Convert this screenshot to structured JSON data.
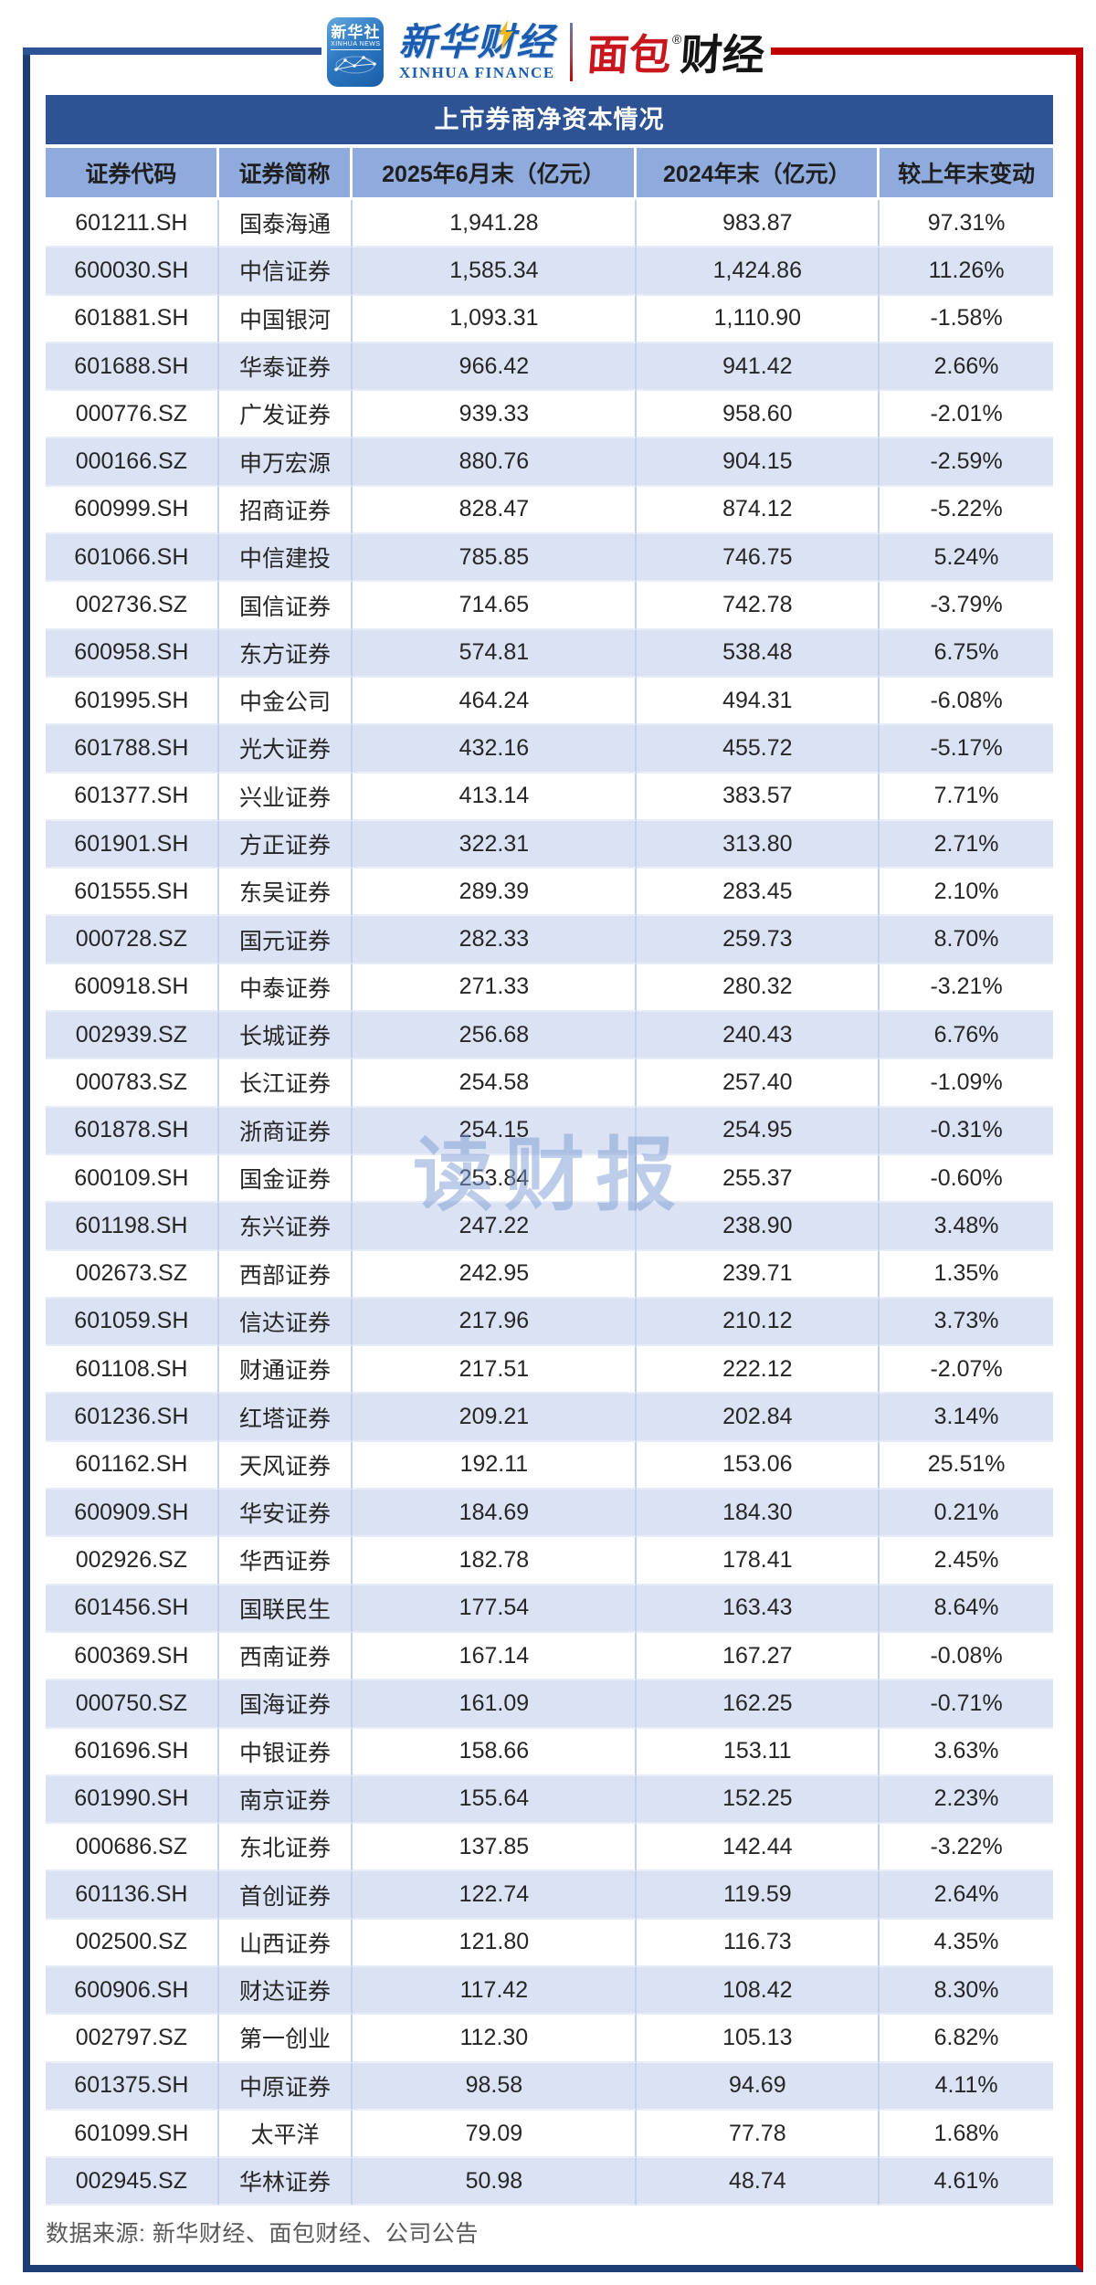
{
  "header_logo": {
    "xinhua_icon": {
      "line1": "新华社",
      "line2": "XINHUA NEWS"
    },
    "xinhua_finance": {
      "cn": "新华财经",
      "en": "XINHUA FINANCE"
    },
    "bread_finance": {
      "cn_red": "面包",
      "reg_mark": "®",
      "cn_black": "财经"
    }
  },
  "chart_data": {
    "type": "table",
    "title": "上市券商净资本情况",
    "columns": [
      "证券代码",
      "证券简称",
      "2025年6月末（亿元）",
      "2024年末（亿元）",
      "较上年末变动"
    ],
    "rows": [
      [
        "601211.SH",
        "国泰海通",
        "1,941.28",
        "983.87",
        "97.31%"
      ],
      [
        "600030.SH",
        "中信证券",
        "1,585.34",
        "1,424.86",
        "11.26%"
      ],
      [
        "601881.SH",
        "中国银河",
        "1,093.31",
        "1,110.90",
        "-1.58%"
      ],
      [
        "601688.SH",
        "华泰证券",
        "966.42",
        "941.42",
        "2.66%"
      ],
      [
        "000776.SZ",
        "广发证券",
        "939.33",
        "958.60",
        "-2.01%"
      ],
      [
        "000166.SZ",
        "申万宏源",
        "880.76",
        "904.15",
        "-2.59%"
      ],
      [
        "600999.SH",
        "招商证券",
        "828.47",
        "874.12",
        "-5.22%"
      ],
      [
        "601066.SH",
        "中信建投",
        "785.85",
        "746.75",
        "5.24%"
      ],
      [
        "002736.SZ",
        "国信证券",
        "714.65",
        "742.78",
        "-3.79%"
      ],
      [
        "600958.SH",
        "东方证券",
        "574.81",
        "538.48",
        "6.75%"
      ],
      [
        "601995.SH",
        "中金公司",
        "464.24",
        "494.31",
        "-6.08%"
      ],
      [
        "601788.SH",
        "光大证券",
        "432.16",
        "455.72",
        "-5.17%"
      ],
      [
        "601377.SH",
        "兴业证券",
        "413.14",
        "383.57",
        "7.71%"
      ],
      [
        "601901.SH",
        "方正证券",
        "322.31",
        "313.80",
        "2.71%"
      ],
      [
        "601555.SH",
        "东吴证券",
        "289.39",
        "283.45",
        "2.10%"
      ],
      [
        "000728.SZ",
        "国元证券",
        "282.33",
        "259.73",
        "8.70%"
      ],
      [
        "600918.SH",
        "中泰证券",
        "271.33",
        "280.32",
        "-3.21%"
      ],
      [
        "002939.SZ",
        "长城证券",
        "256.68",
        "240.43",
        "6.76%"
      ],
      [
        "000783.SZ",
        "长江证券",
        "254.58",
        "257.40",
        "-1.09%"
      ],
      [
        "601878.SH",
        "浙商证券",
        "254.15",
        "254.95",
        "-0.31%"
      ],
      [
        "600109.SH",
        "国金证券",
        "253.84",
        "255.37",
        "-0.60%"
      ],
      [
        "601198.SH",
        "东兴证券",
        "247.22",
        "238.90",
        "3.48%"
      ],
      [
        "002673.SZ",
        "西部证券",
        "242.95",
        "239.71",
        "1.35%"
      ],
      [
        "601059.SH",
        "信达证券",
        "217.96",
        "210.12",
        "3.73%"
      ],
      [
        "601108.SH",
        "财通证券",
        "217.51",
        "222.12",
        "-2.07%"
      ],
      [
        "601236.SH",
        "红塔证券",
        "209.21",
        "202.84",
        "3.14%"
      ],
      [
        "601162.SH",
        "天风证券",
        "192.11",
        "153.06",
        "25.51%"
      ],
      [
        "600909.SH",
        "华安证券",
        "184.69",
        "184.30",
        "0.21%"
      ],
      [
        "002926.SZ",
        "华西证券",
        "182.78",
        "178.41",
        "2.45%"
      ],
      [
        "601456.SH",
        "国联民生",
        "177.54",
        "163.43",
        "8.64%"
      ],
      [
        "600369.SH",
        "西南证券",
        "167.14",
        "167.27",
        "-0.08%"
      ],
      [
        "000750.SZ",
        "国海证券",
        "161.09",
        "162.25",
        "-0.71%"
      ],
      [
        "601696.SH",
        "中银证券",
        "158.66",
        "153.11",
        "3.63%"
      ],
      [
        "601990.SH",
        "南京证券",
        "155.64",
        "152.25",
        "2.23%"
      ],
      [
        "000686.SZ",
        "东北证券",
        "137.85",
        "142.44",
        "-3.22%"
      ],
      [
        "601136.SH",
        "首创证券",
        "122.74",
        "119.59",
        "2.64%"
      ],
      [
        "002500.SZ",
        "山西证券",
        "121.80",
        "116.73",
        "4.35%"
      ],
      [
        "600906.SH",
        "财达证券",
        "117.42",
        "108.42",
        "8.30%"
      ],
      [
        "002797.SZ",
        "第一创业",
        "112.30",
        "105.13",
        "6.82%"
      ],
      [
        "601375.SH",
        "中原证券",
        "98.58",
        "94.69",
        "4.11%"
      ],
      [
        "601099.SH",
        "太平洋",
        "79.09",
        "77.78",
        "1.68%"
      ],
      [
        "002945.SZ",
        "华林证券",
        "50.98",
        "48.74",
        "4.61%"
      ]
    ]
  },
  "watermark": "读财报",
  "footer": {
    "source": "数据来源: 新华财经、面包财经、公司公告"
  },
  "colors": {
    "title_bar": "#2E5395",
    "header_row": "#8FAADC",
    "row_alt": "#DAE2F3",
    "frame_blue": "#1E3F76",
    "frame_red": "#C00000",
    "brand_red": "#C9161C",
    "brand_blue": "#1A5CB0",
    "footer_text": "#595959"
  }
}
